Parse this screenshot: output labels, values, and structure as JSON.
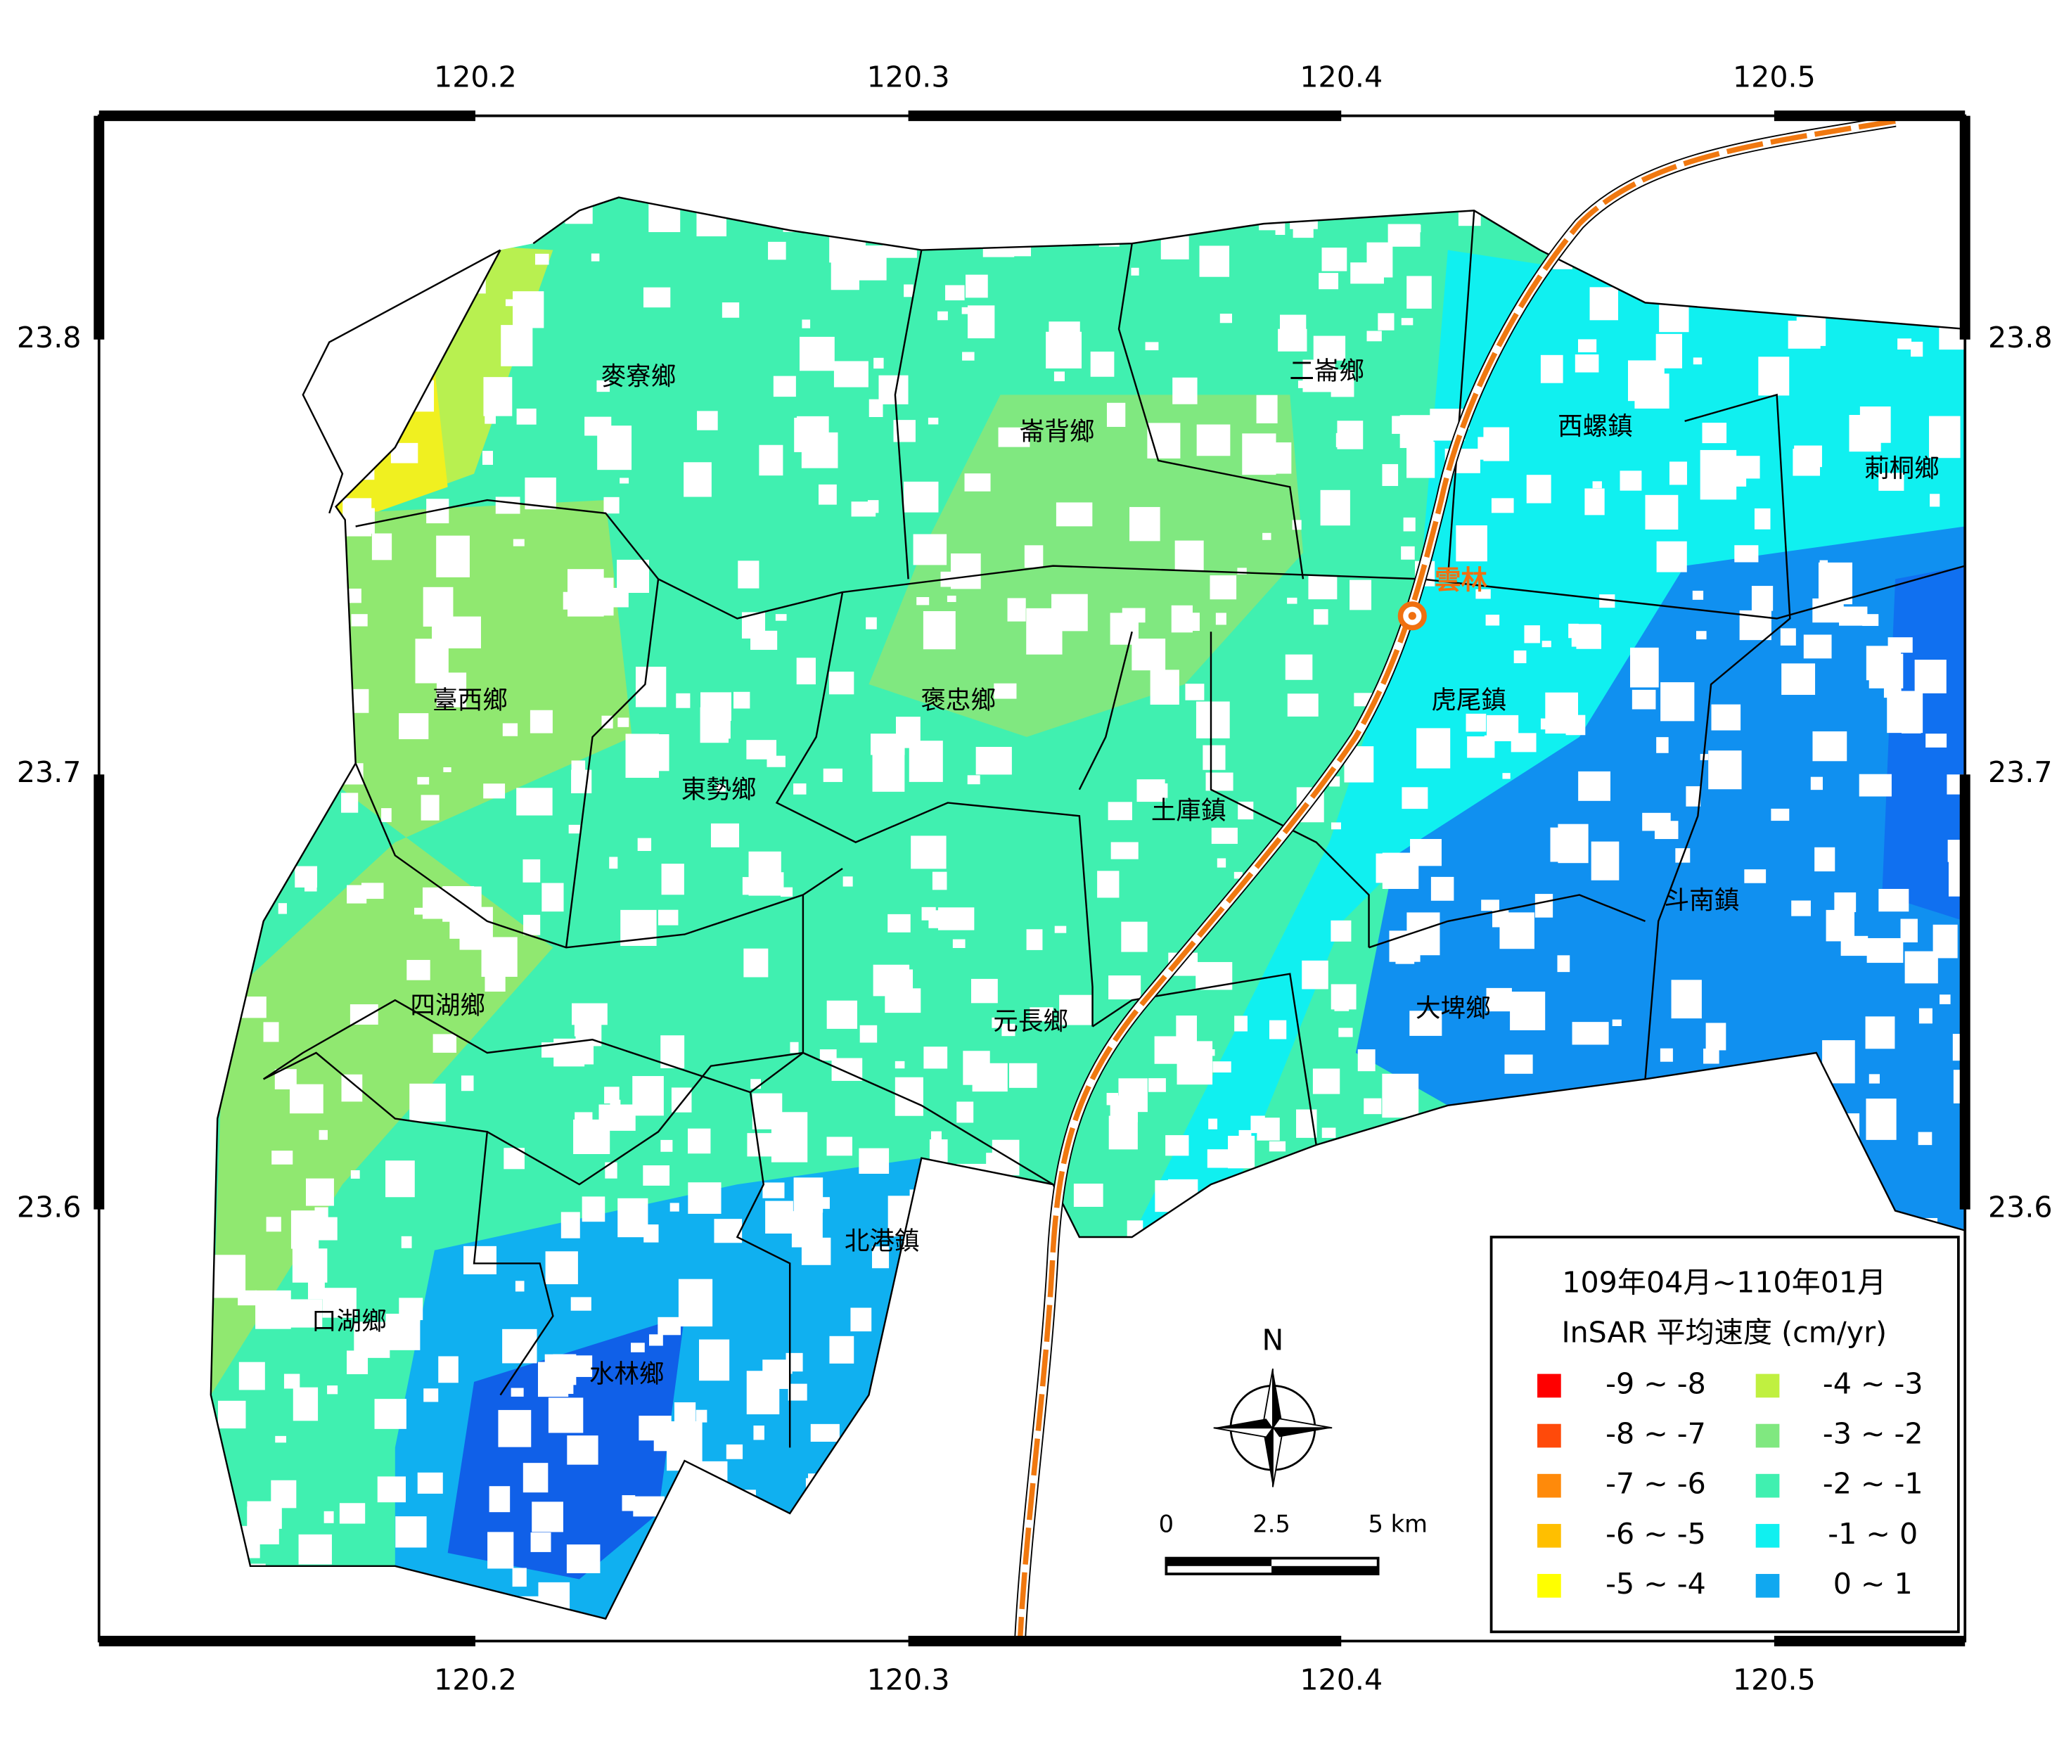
{
  "map": {
    "lon_ticks": [
      120.2,
      120.3,
      120.4,
      120.5
    ],
    "lat_ticks": [
      23.8,
      23.7,
      23.6
    ],
    "townships": [
      "麥寮鄉",
      "崙背鄉",
      "二崙鄉",
      "西螺鎮",
      "莿桐鄉",
      "臺西鄉",
      "褒忠鄉",
      "虎尾鎮",
      "東勢鄉",
      "土庫鎮",
      "斗南鎮",
      "四湖鄉",
      "元長鄉",
      "大埤鄉",
      "北港鎮",
      "口湖鄉",
      "水林鄉"
    ],
    "station": "雲林",
    "north": "N",
    "scale_labels": [
      "0",
      "2.5",
      "5 km"
    ]
  },
  "legend": {
    "title": [
      "109年04月~110年01月",
      "InSAR 平均速度 (cm/yr)"
    ],
    "items": [
      {
        "label": "-9 ~ -8",
        "color": "#ff0000"
      },
      {
        "label": "-8 ~ -7",
        "color": "#ff4a0a"
      },
      {
        "label": "-7 ~ -6",
        "color": "#ff8a0a"
      },
      {
        "label": "-6 ~ -5",
        "color": "#ffbf00"
      },
      {
        "label": "-5 ~ -4",
        "color": "#ffff00"
      },
      {
        "label": "-4 ~ -3",
        "color": "#c0f040"
      },
      {
        "label": "-3 ~ -2",
        "color": "#80e880"
      },
      {
        "label": "-2 ~ -1",
        "color": "#40f0b0"
      },
      {
        "label": "-1 ~ 0",
        "color": "#10f0f0"
      },
      {
        "label": "0 ~ 1",
        "color": "#10a8f0"
      }
    ]
  }
}
